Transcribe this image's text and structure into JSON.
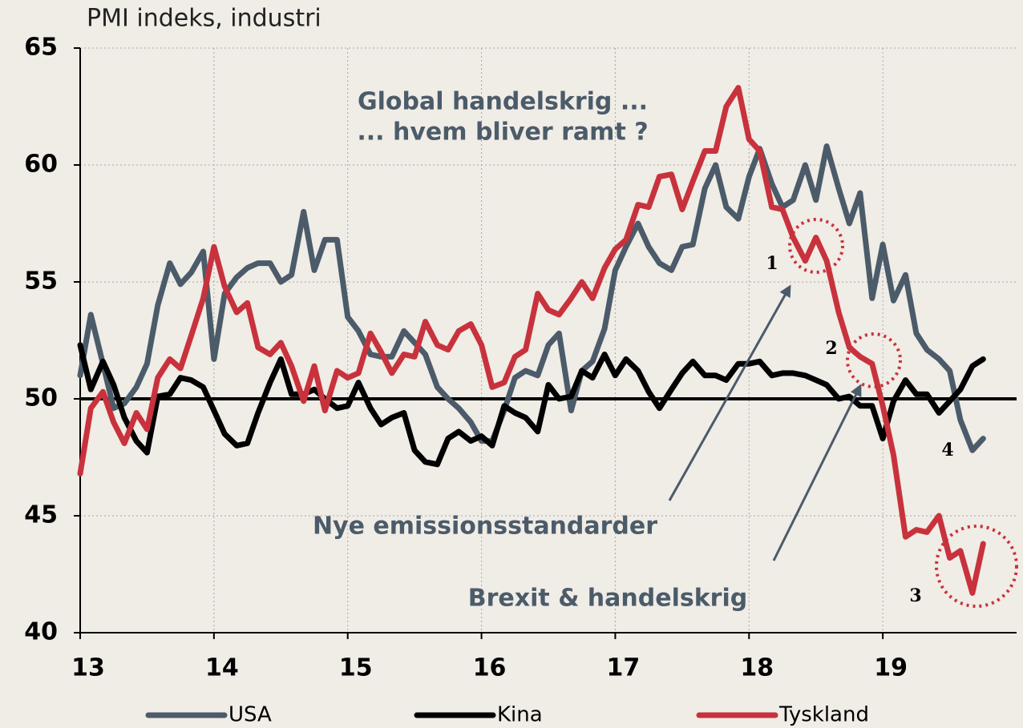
{
  "chart_data": {
    "type": "line",
    "title": "PMI indeks, industri",
    "x": [
      13,
      13.08,
      13.17,
      13.25,
      13.33,
      13.42,
      13.5,
      13.58,
      13.67,
      13.75,
      13.83,
      13.92,
      14,
      14.08,
      14.17,
      14.25,
      14.33,
      14.42,
      14.5,
      14.58,
      14.67,
      14.75,
      14.83,
      14.92,
      15,
      15.08,
      15.17,
      15.25,
      15.33,
      15.42,
      15.5,
      15.58,
      15.67,
      15.75,
      15.83,
      15.92,
      16,
      16.08,
      16.17,
      16.25,
      16.33,
      16.42,
      16.5,
      16.58,
      16.67,
      16.75,
      16.83,
      16.92,
      17,
      17.08,
      17.17,
      17.25,
      17.33,
      17.42,
      17.5,
      17.58,
      17.67,
      17.75,
      17.83,
      17.92,
      18,
      18.08,
      18.17,
      18.25,
      18.33,
      18.42,
      18.5,
      18.58,
      18.67,
      18.75,
      18.83,
      18.92,
      19,
      19.08,
      19.17,
      19.25,
      19.33,
      19.42,
      19.5,
      19.58,
      19.67,
      19.75
    ],
    "series": [
      {
        "name": "USA",
        "color": "#4b5b69",
        "values": [
          51.0,
          53.6,
          51.5,
          49.6,
          49.8,
          50.5,
          51.5,
          54.0,
          55.8,
          54.9,
          55.4,
          56.3,
          51.7,
          54.5,
          55.2,
          55.6,
          55.8,
          55.8,
          55.0,
          55.3,
          58.0,
          55.5,
          56.8,
          56.8,
          53.5,
          52.9,
          51.9,
          51.8,
          51.8,
          52.9,
          52.4,
          51.9,
          50.5,
          50.0,
          49.6,
          49.0,
          48.2,
          48.2,
          49.5,
          50.9,
          51.2,
          51.0,
          52.3,
          52.8,
          49.5,
          51.2,
          51.6,
          53.0,
          55.5,
          56.5,
          57.5,
          56.5,
          55.8,
          55.5,
          56.5,
          56.6,
          59.0,
          60.0,
          58.2,
          57.7,
          59.5,
          60.7,
          59.2,
          58.2,
          58.5,
          60.0,
          58.5,
          60.8,
          59.0,
          57.5,
          58.8,
          54.3,
          56.6,
          54.2,
          55.3,
          52.8,
          52.1,
          51.7,
          51.2,
          49.1,
          47.8,
          48.3
        ]
      },
      {
        "name": "Kina",
        "color": "#000000",
        "values": [
          52.3,
          50.4,
          51.6,
          50.6,
          49.2,
          48.2,
          47.7,
          50.1,
          50.2,
          50.9,
          50.8,
          50.5,
          49.5,
          48.5,
          48.0,
          48.1,
          49.4,
          50.7,
          51.7,
          50.2,
          50.2,
          50.4,
          50.0,
          49.6,
          49.7,
          50.7,
          49.6,
          48.9,
          49.2,
          49.4,
          47.8,
          47.3,
          47.2,
          48.3,
          48.6,
          48.2,
          48.4,
          48.0,
          49.7,
          49.4,
          49.2,
          48.6,
          50.6,
          50.0,
          50.1,
          51.2,
          50.9,
          51.9,
          51.0,
          51.7,
          51.2,
          50.3,
          49.6,
          50.4,
          51.1,
          51.6,
          51.0,
          51.0,
          50.8,
          51.5,
          51.5,
          51.6,
          51.0,
          51.1,
          51.1,
          51.0,
          50.8,
          50.6,
          50.0,
          50.1,
          49.7,
          49.7,
          48.3,
          49.9,
          50.8,
          50.2,
          50.2,
          49.4,
          49.9,
          50.4,
          51.4,
          51.7
        ]
      },
      {
        "name": "Tyskland",
        "color": "#c8323c",
        "values": [
          46.8,
          49.6,
          50.3,
          49.0,
          48.1,
          49.4,
          48.7,
          50.9,
          51.7,
          51.3,
          52.7,
          54.3,
          56.5,
          54.8,
          53.7,
          54.1,
          52.2,
          51.9,
          52.4,
          51.4,
          49.9,
          51.4,
          49.5,
          51.2,
          50.9,
          51.1,
          52.8,
          52.0,
          51.1,
          51.9,
          51.8,
          53.3,
          52.3,
          52.1,
          52.9,
          53.2,
          52.3,
          50.5,
          50.7,
          51.8,
          52.1,
          54.5,
          53.8,
          53.6,
          54.3,
          55.0,
          54.3,
          55.6,
          56.4,
          56.8,
          58.3,
          58.2,
          59.5,
          59.6,
          58.1,
          59.3,
          60.6,
          60.6,
          62.5,
          63.3,
          61.1,
          60.6,
          58.2,
          58.1,
          56.9,
          55.9,
          56.9,
          55.9,
          53.7,
          52.2,
          51.8,
          51.5,
          49.7,
          47.6,
          44.1,
          44.4,
          44.3,
          45.0,
          43.2,
          43.5,
          41.7,
          43.8
        ]
      }
    ],
    "reference_line": 50,
    "xlim": [
      13,
      20
    ],
    "ylim": [
      40,
      65
    ],
    "xticks": [
      13,
      14,
      15,
      16,
      17,
      18,
      19
    ],
    "yticks": [
      40,
      45,
      50,
      55,
      60,
      65
    ],
    "grid": true,
    "legend": "bottom",
    "annotations": [
      "Global handelskrig ...",
      "... hvem bliver ramt ?",
      "Nye emissionsstandarder",
      "Brexit & handelskrig",
      "1",
      "2",
      "3",
      "4"
    ]
  }
}
